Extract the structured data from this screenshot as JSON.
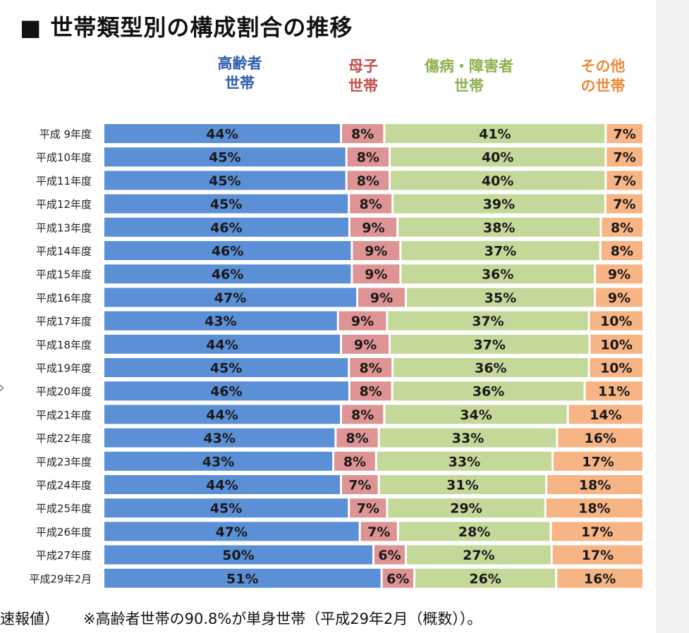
{
  "title": "■ 世帯類型別の構成割合の推移",
  "footnote": {
    "left": "速報値）",
    "note": "※高齢者世帯の90.8%が単身世帯（平成29年2月（概数））。"
  },
  "colors": {
    "elderly": "#5b8fd6",
    "single_mother": "#de9394",
    "disabled": "#c4d89a",
    "other": "#f7b485",
    "elderly_text": "#2e5ea8",
    "single_mother_text": "#c0504d",
    "disabled_text": "#8fb04f",
    "other_text": "#e98b3b"
  },
  "chart_data": {
    "type": "bar",
    "orientation": "horizontal",
    "stacked": true,
    "categories": [
      "平成 9年度",
      "平成10年度",
      "平成11年度",
      "平成12年度",
      "平成13年度",
      "平成14年度",
      "平成15年度",
      "平成16年度",
      "平成17年度",
      "平成18年度",
      "平成19年度",
      "平成20年度",
      "平成21年度",
      "平成22年度",
      "平成23年度",
      "平成24年度",
      "平成25年度",
      "平成26年度",
      "平成27年度",
      "平成29年2月"
    ],
    "series": [
      {
        "name": "高齢者\n世帯",
        "color": "#5b8fd6",
        "text_color": "#2e5ea8",
        "values": [
          44,
          45,
          45,
          45,
          46,
          46,
          46,
          47,
          43,
          44,
          45,
          46,
          44,
          43,
          43,
          44,
          45,
          47,
          50,
          51
        ]
      },
      {
        "name": "母子\n世帯",
        "color": "#de9394",
        "text_color": "#c0504d",
        "values": [
          8,
          8,
          8,
          8,
          9,
          9,
          9,
          9,
          9,
          9,
          8,
          8,
          8,
          8,
          8,
          7,
          7,
          7,
          6,
          6
        ]
      },
      {
        "name": "傷病・障害者\n世帯",
        "color": "#c4d89a",
        "text_color": "#8fb04f",
        "values": [
          41,
          40,
          40,
          39,
          38,
          37,
          36,
          35,
          37,
          37,
          36,
          36,
          34,
          33,
          33,
          31,
          29,
          28,
          27,
          26
        ]
      },
      {
        "name": "その他\nの世帯",
        "color": "#f7b485",
        "text_color": "#e98b3b",
        "values": [
          7,
          7,
          7,
          7,
          8,
          8,
          9,
          9,
          10,
          10,
          10,
          11,
          14,
          16,
          17,
          18,
          18,
          17,
          17,
          16
        ]
      }
    ],
    "value_suffix": "%",
    "legend": "top",
    "grid": false
  }
}
